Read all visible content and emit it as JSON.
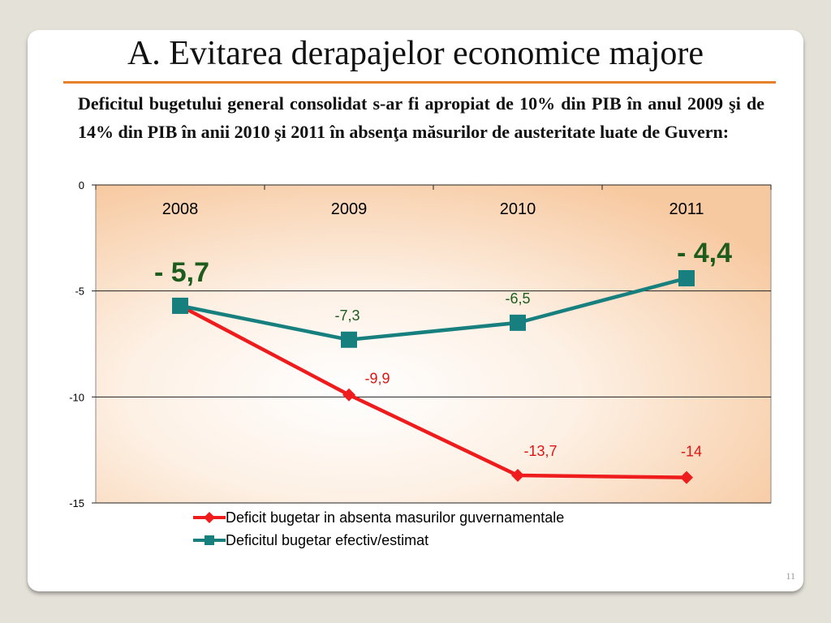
{
  "slide": {
    "title": "A. Evitarea derapajelor economice majore",
    "subtitle": "Deficitul bugetului general consolidat s-ar fi apropiat de 10% din PIB în anul 2009 şi de 14% din PIB în anii 2010 şi 2011 în absenţa măsurilor de austeritate luate de Guvern:",
    "page_number": "11"
  },
  "colors": {
    "accent_rule": "#e8802a",
    "series_red": "#ee1c1c",
    "series_teal": "#17807e",
    "label_red": "#e01414",
    "label_green": "#1e5c1e"
  },
  "chart_data": {
    "type": "line",
    "categories": [
      "2008",
      "2009",
      "2010",
      "2011"
    ],
    "ylim": [
      -15,
      0
    ],
    "yticks": [
      0,
      -5,
      -10,
      -15
    ],
    "ytick_labels": [
      "0",
      "-5",
      "-10",
      "-15"
    ],
    "title": "",
    "xlabel": "",
    "ylabel": "",
    "grid": true,
    "legend_position": "bottom",
    "series": [
      {
        "name": "Deficit bugetar in absenta masurilor guvernamentale",
        "values": [
          -5.7,
          -9.9,
          -13.7,
          -13.8
        ],
        "labels": [
          "",
          "-9,9",
          "-13,7",
          "-14"
        ],
        "marker": "diamond"
      },
      {
        "name": "Deficitul bugetar efectiv/estimat",
        "values": [
          -5.7,
          -7.3,
          -6.5,
          -4.4
        ],
        "labels": [
          "- 5,7",
          "-7,3",
          "-6,5",
          "- 4,4"
        ],
        "marker": "square"
      }
    ]
  }
}
